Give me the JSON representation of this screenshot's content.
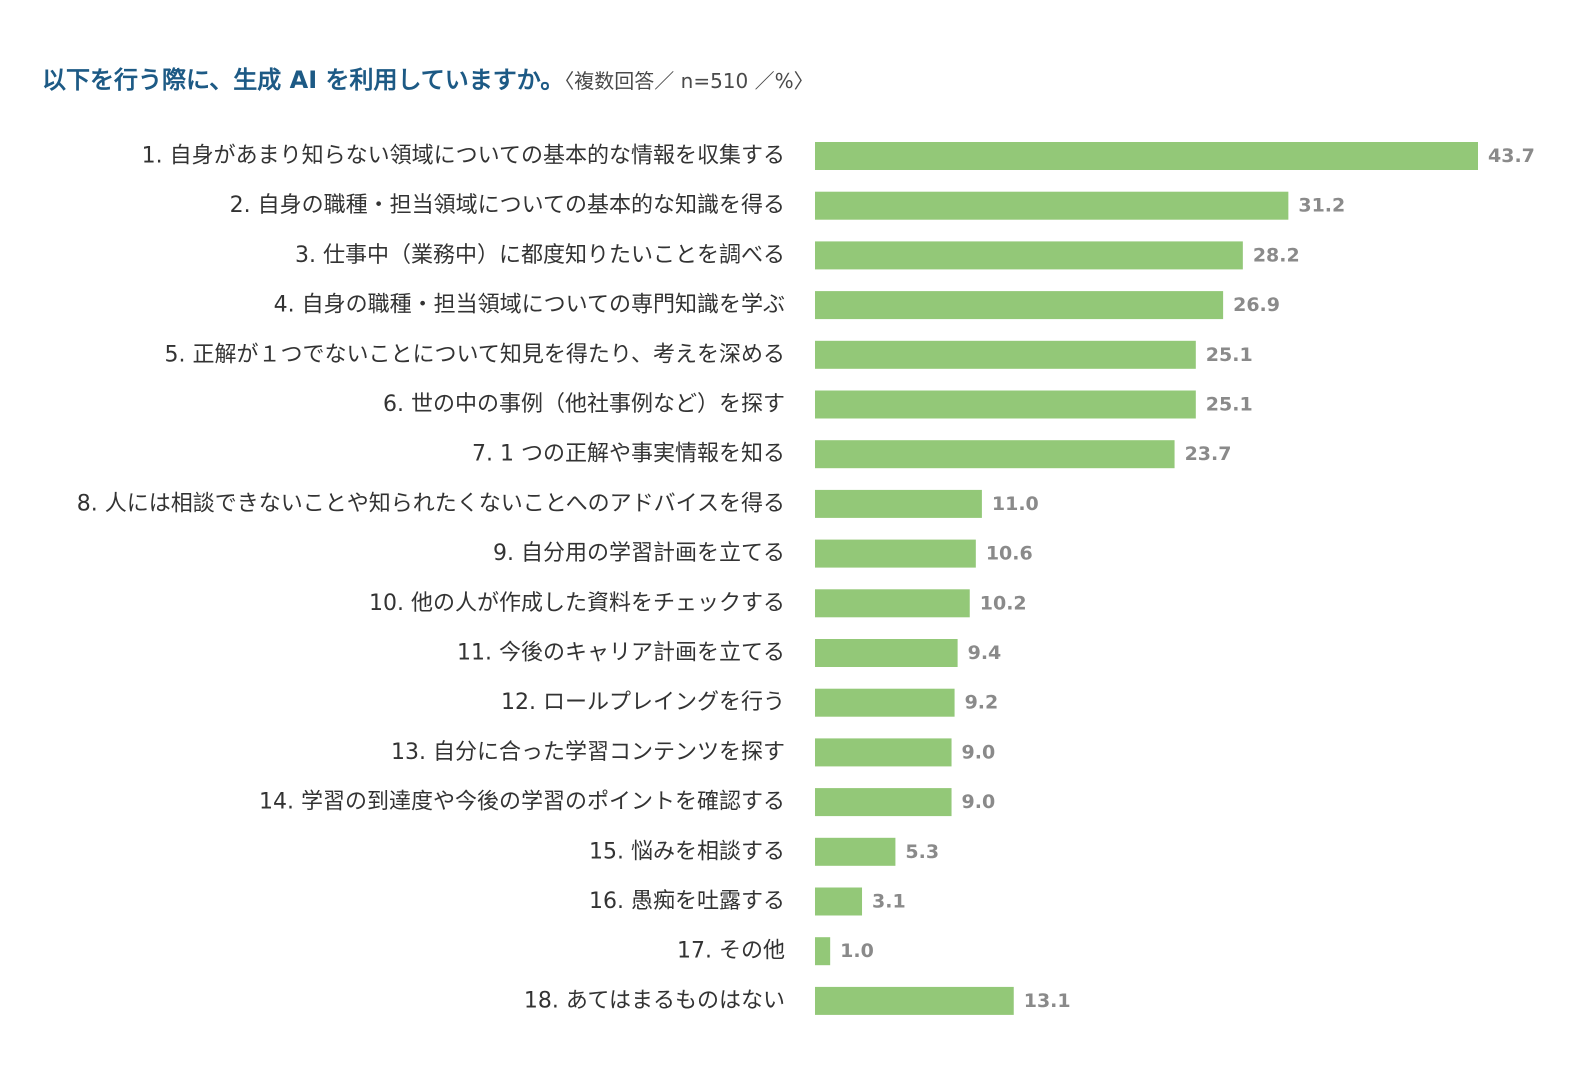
{
  "title": {
    "main": "以下を行う際に、生成 AI を利用していますか。",
    "sub": "〈複数回答／ n=510 ／%〉"
  },
  "colors": {
    "bar": "#93c878",
    "title": "#1d5a85"
  },
  "chart_data": {
    "type": "bar",
    "orientation": "horizontal",
    "title": "以下を行う際に、生成 AI を利用していますか。〈複数回答／ n=510 ／%〉",
    "xlabel": "",
    "ylabel": "",
    "xlim": [
      0,
      43.7
    ],
    "grid": false,
    "categories": [
      "1. 自身があまり知らない領域についての基本的な情報を収集する",
      "2. 自身の職種・担当領域についての基本的な知識を得る",
      "3. 仕事中（業務中）に都度知りたいことを調べる",
      "4. 自身の職種・担当領域についての専門知識を学ぶ",
      "5. 正解が１つでないことについて知見を得たり、考えを深める",
      "6. 世の中の事例（他社事例など）を探す",
      "7. 1 つの正解や事実情報を知る",
      "8. 人には相談できないことや知られたくないことへのアドバイスを得る",
      "9. 自分用の学習計画を立てる",
      "10. 他の人が作成した資料をチェックする",
      "11. 今後のキャリア計画を立てる",
      "12. ロールプレイングを行う",
      "13. 自分に合った学習コンテンツを探す",
      "14. 学習の到達度や今後の学習のポイントを確認する",
      "15. 悩みを相談する",
      "16. 愚痴を吐露する",
      "17. その他",
      "18. あてはまるものはない"
    ],
    "values": [
      43.7,
      31.2,
      28.2,
      26.9,
      25.1,
      25.1,
      23.7,
      11.0,
      10.6,
      10.2,
      9.4,
      9.2,
      9.0,
      9.0,
      5.3,
      3.1,
      1.0,
      13.1
    ],
    "value_labels": [
      "43.7",
      "31.2",
      "28.2",
      "26.9",
      "25.1",
      "25.1",
      "23.7",
      "11.0",
      "10.6",
      "10.2",
      "9.4",
      "9.2",
      "9.0",
      "9.0",
      "5.3",
      "3.1",
      "1.0",
      "13.1"
    ]
  }
}
